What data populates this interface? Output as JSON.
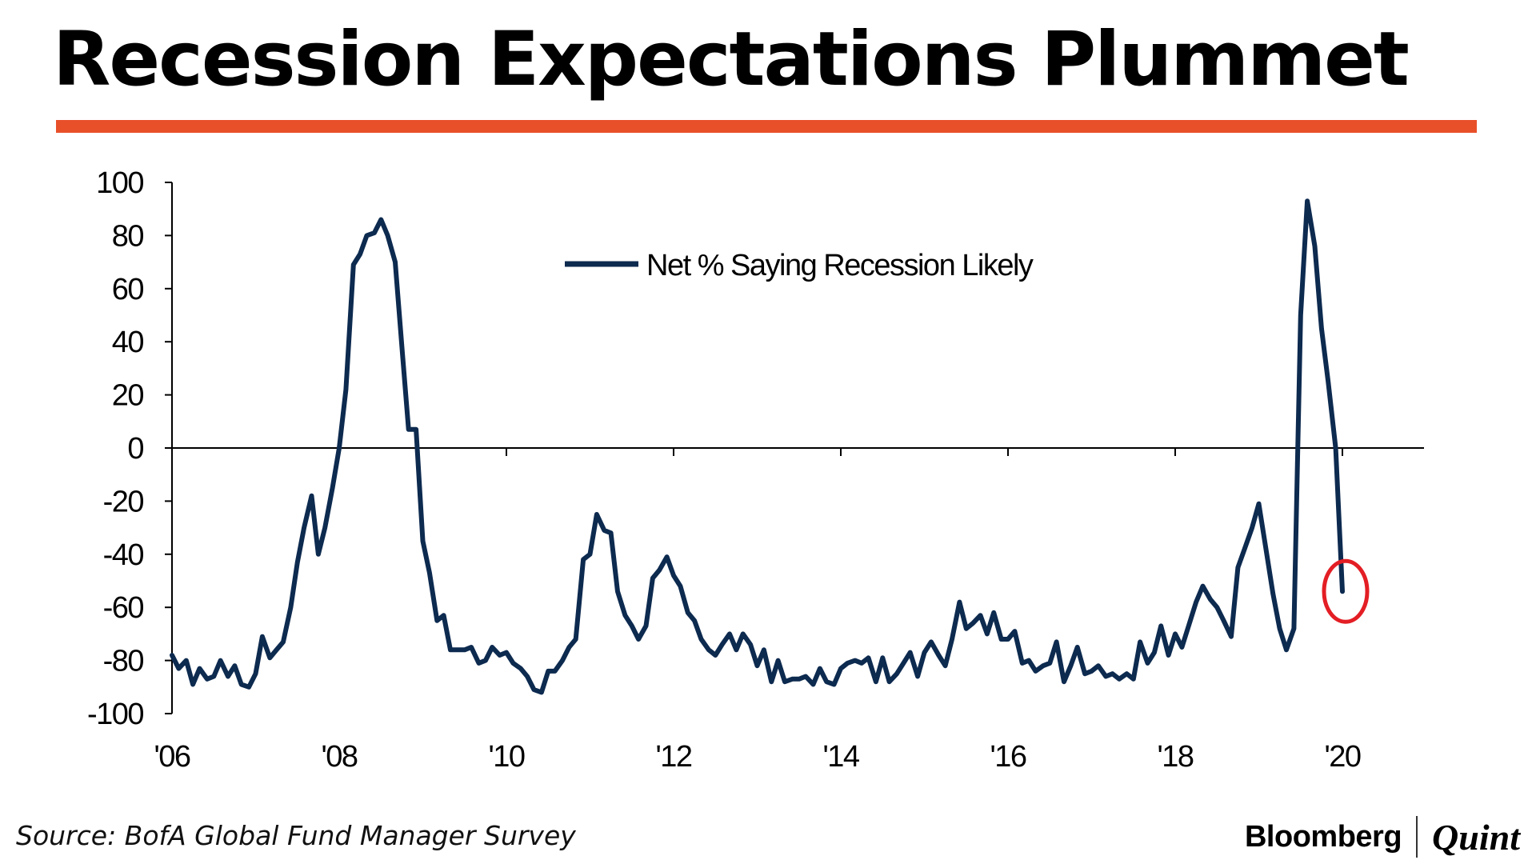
{
  "header": {
    "title": "Recession Expectations Plummet",
    "accent_color": "#e8502a"
  },
  "footer": {
    "source": "Source: BofA Global Fund Manager Survey",
    "brand_primary": "Bloomberg",
    "brand_secondary": "Quint"
  },
  "chart_data": {
    "type": "line",
    "title": "",
    "xlabel": "",
    "ylabel": "",
    "ylim": [
      -100,
      100
    ],
    "xlim": [
      2006,
      2021
    ],
    "yticks": [
      "100",
      "80",
      "60",
      "40",
      "20",
      "0",
      "-20",
      "-40",
      "-60",
      "-80",
      "-100"
    ],
    "ytick_values": [
      100,
      80,
      60,
      40,
      20,
      0,
      -20,
      -40,
      -60,
      -80,
      -100
    ],
    "xticks": [
      "'06",
      "'08",
      "'10",
      "'12",
      "'14",
      "'16",
      "'18",
      "'20"
    ],
    "xtick_values": [
      2006,
      2008,
      2010,
      2012,
      2014,
      2016,
      2018,
      2020
    ],
    "legend": {
      "label": "Net % Saying Recession Likely",
      "position": "top-center"
    },
    "line_color": "#0d2a4f",
    "highlight_color": "#e31e24",
    "highlight_point": {
      "x": 2020.0,
      "y": -54
    },
    "series": [
      {
        "name": "Net % Saying Recession Likely",
        "points": [
          [
            2006.0,
            -78
          ],
          [
            2006.08,
            -83
          ],
          [
            2006.17,
            -80
          ],
          [
            2006.25,
            -89
          ],
          [
            2006.33,
            -83
          ],
          [
            2006.42,
            -87
          ],
          [
            2006.5,
            -86
          ],
          [
            2006.58,
            -80
          ],
          [
            2006.67,
            -86
          ],
          [
            2006.75,
            -82
          ],
          [
            2006.83,
            -89
          ],
          [
            2006.92,
            -90
          ],
          [
            2007.0,
            -85
          ],
          [
            2007.08,
            -71
          ],
          [
            2007.17,
            -79
          ],
          [
            2007.25,
            -76
          ],
          [
            2007.33,
            -73
          ],
          [
            2007.42,
            -60
          ],
          [
            2007.5,
            -43
          ],
          [
            2007.58,
            -30
          ],
          [
            2007.67,
            -18
          ],
          [
            2007.75,
            -40
          ],
          [
            2007.83,
            -30
          ],
          [
            2007.92,
            -15
          ],
          [
            2008.0,
            0
          ],
          [
            2008.08,
            22
          ],
          [
            2008.17,
            69
          ],
          [
            2008.25,
            73
          ],
          [
            2008.33,
            80
          ],
          [
            2008.42,
            81
          ],
          [
            2008.5,
            86
          ],
          [
            2008.58,
            80
          ],
          [
            2008.67,
            70
          ],
          [
            2008.75,
            38
          ],
          [
            2008.83,
            7
          ],
          [
            2008.92,
            7
          ],
          [
            2009.0,
            -35
          ],
          [
            2009.08,
            -47
          ],
          [
            2009.17,
            -65
          ],
          [
            2009.25,
            -63
          ],
          [
            2009.33,
            -76
          ],
          [
            2009.42,
            -76
          ],
          [
            2009.5,
            -76
          ],
          [
            2009.58,
            -75
          ],
          [
            2009.67,
            -81
          ],
          [
            2009.75,
            -80
          ],
          [
            2009.83,
            -75
          ],
          [
            2009.92,
            -78
          ],
          [
            2010.0,
            -77
          ],
          [
            2010.08,
            -81
          ],
          [
            2010.17,
            -83
          ],
          [
            2010.25,
            -86
          ],
          [
            2010.33,
            -91
          ],
          [
            2010.42,
            -92
          ],
          [
            2010.5,
            -84
          ],
          [
            2010.58,
            -84
          ],
          [
            2010.67,
            -80
          ],
          [
            2010.75,
            -75
          ],
          [
            2010.83,
            -72
          ],
          [
            2010.92,
            -42
          ],
          [
            2011.0,
            -40
          ],
          [
            2011.08,
            -25
          ],
          [
            2011.17,
            -31
          ],
          [
            2011.25,
            -32
          ],
          [
            2011.33,
            -54
          ],
          [
            2011.42,
            -63
          ],
          [
            2011.5,
            -67
          ],
          [
            2011.58,
            -72
          ],
          [
            2011.67,
            -67
          ],
          [
            2011.75,
            -49
          ],
          [
            2011.83,
            -46
          ],
          [
            2011.92,
            -41
          ],
          [
            2012.0,
            -48
          ],
          [
            2012.08,
            -52
          ],
          [
            2012.17,
            -62
          ],
          [
            2012.25,
            -65
          ],
          [
            2012.33,
            -72
          ],
          [
            2012.42,
            -76
          ],
          [
            2012.5,
            -78
          ],
          [
            2012.58,
            -74
          ],
          [
            2012.67,
            -70
          ],
          [
            2012.75,
            -76
          ],
          [
            2012.83,
            -70
          ],
          [
            2012.92,
            -74
          ],
          [
            2013.0,
            -82
          ],
          [
            2013.08,
            -76
          ],
          [
            2013.17,
            -88
          ],
          [
            2013.25,
            -80
          ],
          [
            2013.33,
            -88
          ],
          [
            2013.42,
            -87
          ],
          [
            2013.5,
            -87
          ],
          [
            2013.58,
            -86
          ],
          [
            2013.67,
            -89
          ],
          [
            2013.75,
            -83
          ],
          [
            2013.83,
            -88
          ],
          [
            2013.92,
            -89
          ],
          [
            2014.0,
            -83
          ],
          [
            2014.08,
            -81
          ],
          [
            2014.17,
            -80
          ],
          [
            2014.25,
            -81
          ],
          [
            2014.33,
            -79
          ],
          [
            2014.42,
            -88
          ],
          [
            2014.5,
            -79
          ],
          [
            2014.58,
            -88
          ],
          [
            2014.67,
            -85
          ],
          [
            2014.75,
            -81
          ],
          [
            2014.83,
            -77
          ],
          [
            2014.92,
            -86
          ],
          [
            2015.0,
            -77
          ],
          [
            2015.08,
            -73
          ],
          [
            2015.17,
            -78
          ],
          [
            2015.25,
            -82
          ],
          [
            2015.33,
            -72
          ],
          [
            2015.42,
            -58
          ],
          [
            2015.5,
            -68
          ],
          [
            2015.58,
            -66
          ],
          [
            2015.67,
            -63
          ],
          [
            2015.75,
            -70
          ],
          [
            2015.83,
            -62
          ],
          [
            2015.92,
            -72
          ],
          [
            2016.0,
            -72
          ],
          [
            2016.08,
            -69
          ],
          [
            2016.17,
            -81
          ],
          [
            2016.25,
            -80
          ],
          [
            2016.33,
            -84
          ],
          [
            2016.42,
            -82
          ],
          [
            2016.5,
            -81
          ],
          [
            2016.58,
            -73
          ],
          [
            2016.67,
            -88
          ],
          [
            2016.75,
            -82
          ],
          [
            2016.83,
            -75
          ],
          [
            2016.92,
            -85
          ],
          [
            2017.0,
            -84
          ],
          [
            2017.08,
            -82
          ],
          [
            2017.17,
            -86
          ],
          [
            2017.25,
            -85
          ],
          [
            2017.33,
            -87
          ],
          [
            2017.42,
            -85
          ],
          [
            2017.5,
            -87
          ],
          [
            2017.58,
            -73
          ],
          [
            2017.67,
            -81
          ],
          [
            2017.75,
            -77
          ],
          [
            2017.83,
            -67
          ],
          [
            2017.92,
            -78
          ],
          [
            2018.0,
            -70
          ],
          [
            2018.08,
            -75
          ],
          [
            2018.17,
            -66
          ],
          [
            2018.25,
            -58
          ],
          [
            2018.33,
            -52
          ],
          [
            2018.42,
            -57
          ],
          [
            2018.5,
            -60
          ],
          [
            2018.58,
            -65
          ],
          [
            2018.67,
            -71
          ],
          [
            2018.75,
            -45
          ],
          [
            2018.83,
            -38
          ],
          [
            2018.92,
            -30
          ],
          [
            2019.0,
            -21
          ],
          [
            2019.08,
            -37
          ],
          [
            2019.17,
            -55
          ],
          [
            2019.25,
            -68
          ],
          [
            2019.33,
            -76
          ],
          [
            2019.42,
            -68
          ],
          [
            2019.5,
            50
          ],
          [
            2019.58,
            93
          ],
          [
            2019.67,
            76
          ],
          [
            2019.75,
            45
          ],
          [
            2019.83,
            25
          ],
          [
            2019.92,
            0
          ],
          [
            2020.0,
            -54
          ]
        ]
      }
    ]
  }
}
